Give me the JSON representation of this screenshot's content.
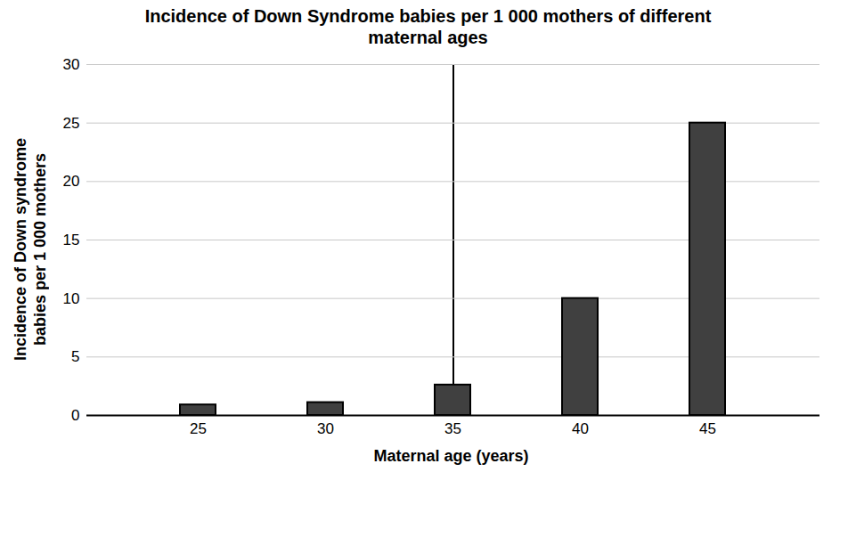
{
  "chart_data": {
    "type": "bar",
    "title": "Incidence of Down Syndrome babies per 1 000 mothers of different maternal ages",
    "x_label": "Maternal age (years)",
    "y_label": "Incidence of Down syndrome babies per 1 000 mothers",
    "categories": [
      25,
      30,
      35,
      40,
      45
    ],
    "values": [
      0.9,
      1.1,
      2.6,
      10,
      25
    ],
    "color": "#404040",
    "ylim": [
      0,
      30
    ],
    "yticks": [
      0,
      5,
      10,
      15,
      20,
      25,
      30
    ],
    "grid": true
  }
}
